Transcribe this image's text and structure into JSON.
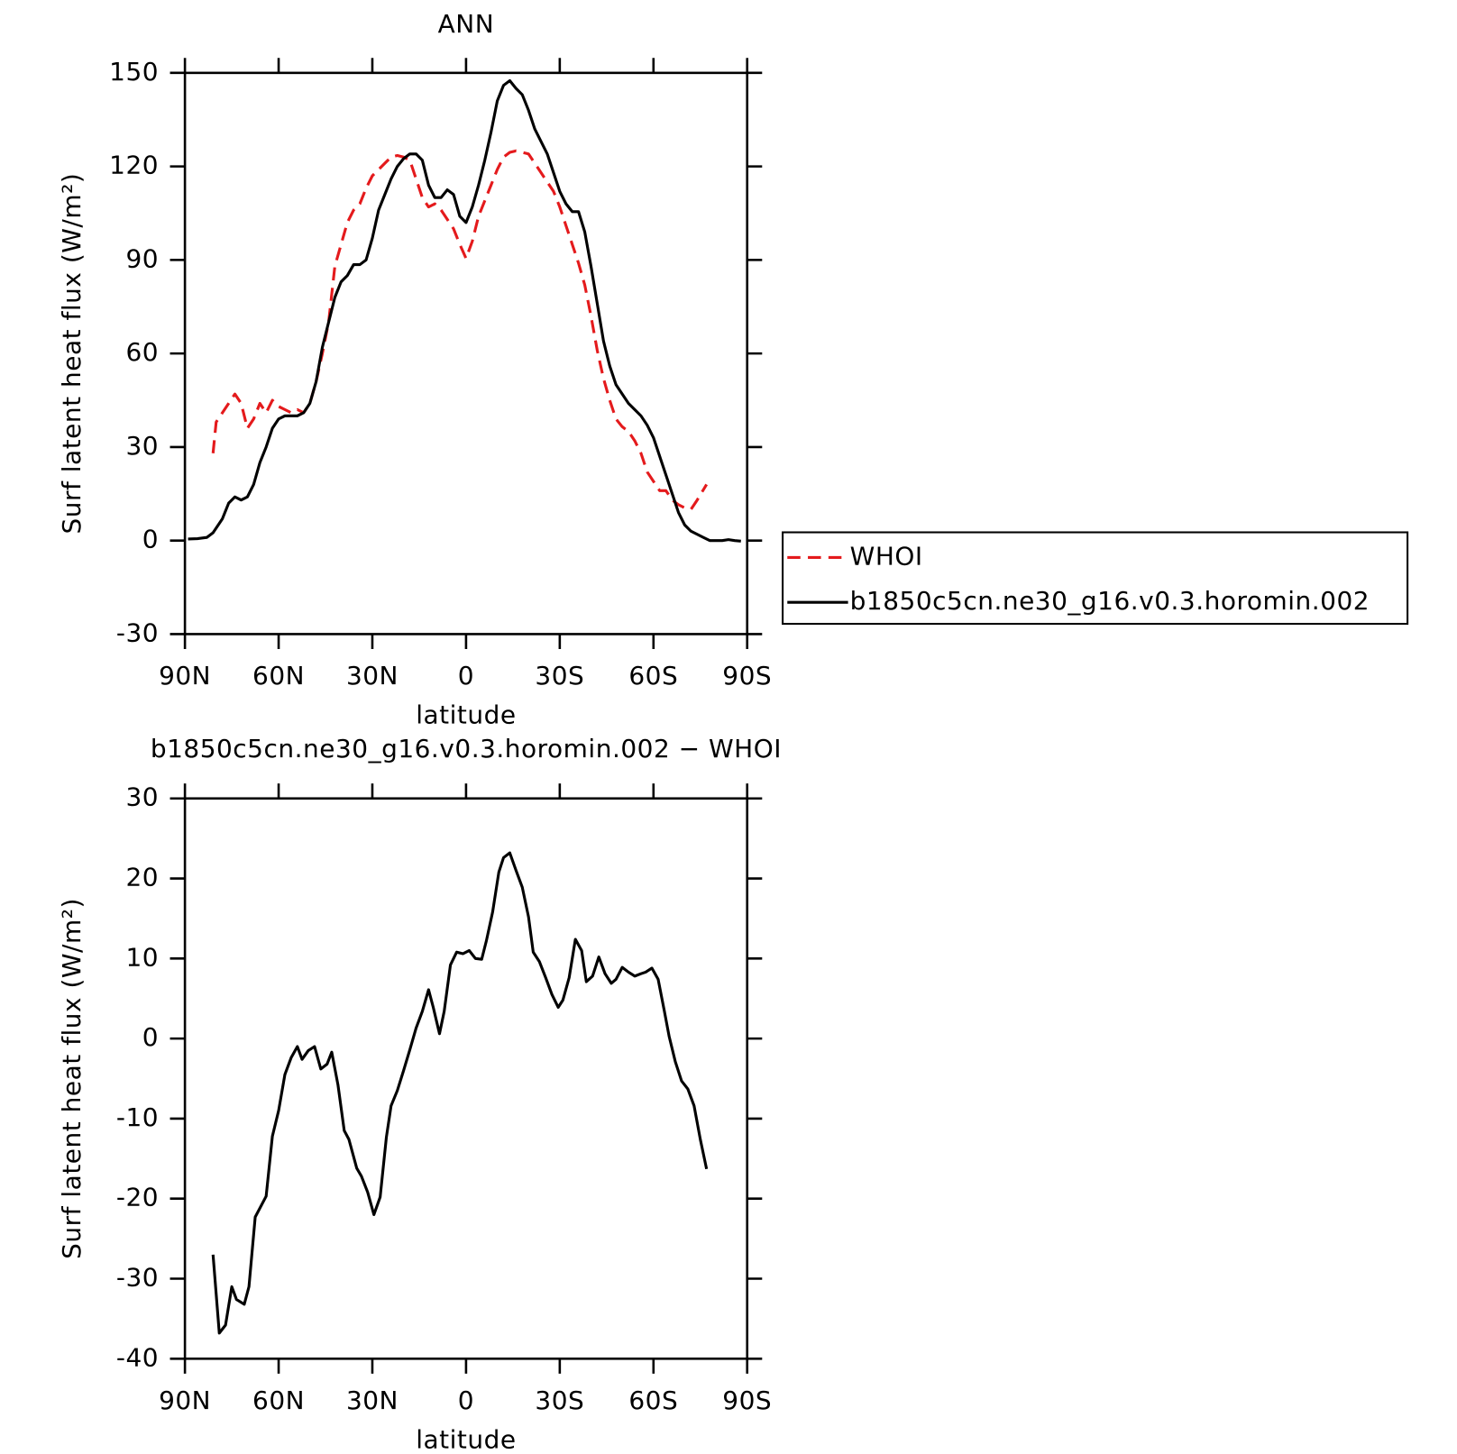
{
  "chart_data": [
    {
      "type": "line",
      "title": "ANN",
      "xlabel": "latitude",
      "ylabel": "Surf latent heat flux (W/m²)",
      "xlim": [
        90,
        -90
      ],
      "xticks": [
        {
          "value": 90,
          "label": "90N"
        },
        {
          "value": 60,
          "label": "60N"
        },
        {
          "value": 30,
          "label": "30N"
        },
        0,
        {
          "value": -30,
          "label": "30S"
        },
        {
          "value": -60,
          "label": "60S"
        },
        {
          "value": -90,
          "label": "90S"
        }
      ],
      "ylim": [
        -30,
        150
      ],
      "yticks": [
        -30,
        0,
        30,
        60,
        90,
        120,
        150
      ],
      "legend": "right",
      "series": [
        {
          "name": "WHOI",
          "color": "#e41a1c",
          "dash": true,
          "x": [
            81,
            80,
            78,
            76,
            74,
            72,
            70,
            68,
            66,
            64,
            62,
            60,
            58,
            56,
            54,
            52,
            50,
            48,
            46,
            44,
            42,
            40,
            38,
            36,
            34,
            32,
            30,
            28,
            26,
            24,
            22,
            20,
            18,
            16,
            14,
            12,
            10,
            8,
            6,
            4,
            2,
            0,
            -2,
            -4,
            -6,
            -8,
            -10,
            -12,
            -14,
            -16,
            -18,
            -20,
            -22,
            -24,
            -26,
            -28,
            -30,
            -32,
            -34,
            -36,
            -38,
            -40,
            -42,
            -44,
            -46,
            -48,
            -50,
            -52,
            -54,
            -56,
            -58,
            -60,
            -62,
            -64,
            -66,
            -68,
            -70,
            -72,
            -74,
            -77
          ],
          "values": [
            28,
            38,
            41,
            44,
            47,
            44,
            36,
            39,
            44,
            41,
            45,
            43,
            42,
            41,
            42,
            41,
            44,
            51,
            60,
            70,
            88,
            95,
            102,
            106,
            108,
            113,
            117,
            119,
            121,
            123,
            123.5,
            123,
            122,
            116,
            110,
            107,
            108,
            106,
            103,
            100,
            95,
            90.5,
            96,
            104,
            109,
            114,
            119,
            123,
            124.5,
            125,
            124.5,
            124,
            121,
            118,
            115,
            112,
            107,
            101,
            95,
            89,
            82,
            72,
            61,
            52,
            45,
            39,
            36.5,
            35,
            32,
            28,
            22,
            19,
            16,
            16,
            13,
            11.5,
            10.5,
            10,
            13,
            18
          ]
        },
        {
          "name": "b1850c5cn.ne30_g16.v0.3.horomin.002",
          "color": "#000000",
          "dash": false,
          "x": [
            89,
            86,
            83,
            81,
            78,
            76,
            74,
            72,
            70,
            68,
            66,
            64,
            62,
            60,
            58,
            56,
            54,
            52,
            50,
            48,
            46,
            44,
            42,
            40,
            38,
            36,
            34,
            32,
            30,
            28,
            26,
            24,
            22,
            20,
            18,
            16,
            14,
            12,
            10,
            8,
            6,
            4,
            2,
            0,
            -2,
            -4,
            -6,
            -8,
            -10,
            -12,
            -14,
            -16,
            -18,
            -20,
            -22,
            -24,
            -26,
            -28,
            -30,
            -32,
            -34,
            -36,
            -38,
            -40,
            -42,
            -44,
            -46,
            -48,
            -50,
            -52,
            -54,
            -56,
            -58,
            -60,
            -62,
            -64,
            -66,
            -68,
            -70,
            -72,
            -74,
            -76,
            -78,
            -80,
            -82,
            -84,
            -86,
            -88
          ],
          "values": [
            0.5,
            0.6,
            1,
            2.5,
            7,
            12,
            14,
            13,
            14,
            18,
            25,
            30,
            36,
            39,
            40,
            40,
            40,
            41,
            44,
            51,
            62,
            70,
            78,
            83,
            85,
            88.5,
            88.5,
            90,
            97,
            106,
            111,
            116,
            120,
            122.5,
            124,
            124,
            122,
            114,
            110,
            110,
            112.5,
            111,
            104,
            102,
            107,
            114,
            122,
            131,
            141,
            146,
            147.5,
            145,
            143,
            138,
            132,
            128,
            124,
            118,
            112,
            108,
            105.5,
            105.5,
            99,
            88,
            76,
            64,
            56,
            50,
            47,
            44,
            42,
            40,
            37,
            33,
            27,
            21,
            15,
            9,
            5,
            3,
            2,
            1,
            0,
            0,
            0,
            0.3,
            0,
            -0.2
          ]
        }
      ]
    },
    {
      "type": "line",
      "title": "b1850c5cn.ne30_g16.v0.3.horomin.002 − WHOI",
      "xlabel": "latitude",
      "ylabel": "Surf latent heat flux (W/m²)",
      "xlim": [
        90,
        -90
      ],
      "xticks": [
        {
          "value": 90,
          "label": "90N"
        },
        {
          "value": 60,
          "label": "60N"
        },
        {
          "value": 30,
          "label": "30N"
        },
        0,
        {
          "value": -30,
          "label": "30S"
        },
        {
          "value": -60,
          "label": "60S"
        },
        {
          "value": -90,
          "label": "90S"
        }
      ],
      "ylim": [
        -40,
        30
      ],
      "yticks": [
        -40,
        -30,
        -20,
        -10,
        0,
        10,
        20,
        30
      ],
      "color": "#000000",
      "x": [
        81,
        79,
        77,
        75,
        73.5,
        71,
        69.5,
        67.5,
        64,
        62,
        60,
        58,
        56,
        54,
        52.5,
        50.5,
        48.5,
        46.5,
        44.5,
        43,
        41,
        39,
        37.5,
        35,
        33.5,
        31.5,
        29.5,
        27.5,
        25.5,
        24,
        22,
        20,
        18,
        16,
        14,
        12,
        10.5,
        8.5,
        7,
        5,
        3,
        1,
        -1,
        -3,
        -5,
        -6.5,
        -8.5,
        -10.5,
        -12,
        -14,
        -16,
        -18,
        -20,
        -21.5,
        -23.5,
        -25.5,
        -27.5,
        -29.5,
        -31,
        -33,
        -35,
        -37,
        -38.5,
        -40.5,
        -42.5,
        -44.5,
        -46.5,
        -48,
        -50,
        -52,
        -54,
        -56,
        -57.5,
        -59.5,
        -61.5,
        -63.5,
        -65,
        -67,
        -69,
        -71,
        -73,
        -75,
        -77
      ],
      "values": [
        -27,
        -36.8,
        -35.8,
        -31,
        -32.6,
        -33.2,
        -31,
        -22.3,
        -19.7,
        -12.2,
        -9,
        -4.5,
        -2.4,
        -1,
        -2.6,
        -1.5,
        -1,
        -3.8,
        -3.2,
        -1.7,
        -5.8,
        -11.5,
        -12.6,
        -16.2,
        -17.2,
        -19.2,
        -22,
        -19.8,
        -12.3,
        -8.4,
        -6.5,
        -4,
        -1.4,
        1.3,
        3.4,
        6.1,
        3.9,
        0.6,
        3.4,
        9.2,
        10.8,
        10.6,
        11,
        10,
        9.9,
        12.2,
        15.8,
        20.8,
        22.6,
        23.2,
        21,
        18.9,
        15.2,
        10.8,
        9.6,
        7.6,
        5.5,
        3.9,
        4.8,
        7.6,
        12.4,
        11,
        7.1,
        7.8,
        10.2,
        8.1,
        6.9,
        7.4,
        8.9,
        8.3,
        7.8,
        8.1,
        8.3,
        8.8,
        7.4,
        3.4,
        0.3,
        -2.9,
        -5.3,
        -6.3,
        -8.4,
        -12.6,
        -16.3
      ]
    }
  ]
}
